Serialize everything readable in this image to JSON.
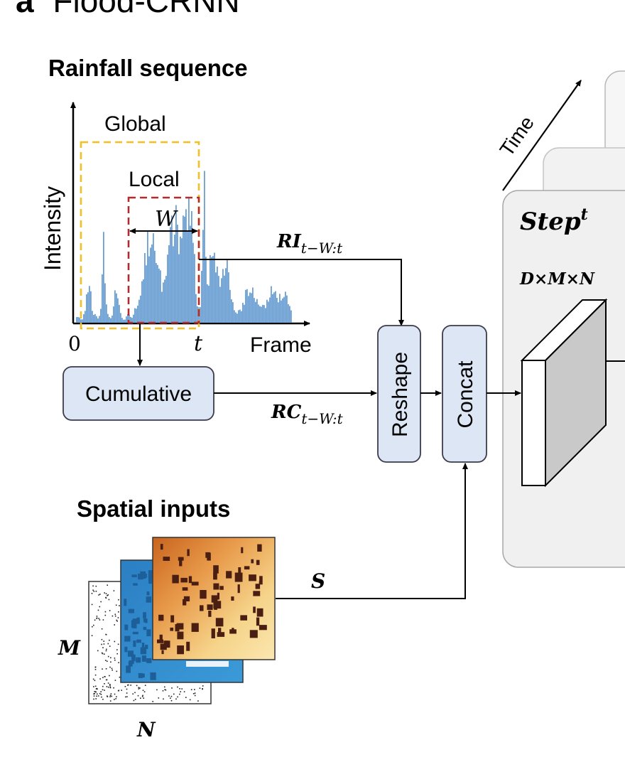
{
  "figure": {
    "panel_letter": "a",
    "panel_title": "Flood-CRNN"
  },
  "rainfall": {
    "heading": "Rainfall sequence",
    "y_axis_label": "Intensity",
    "x_axis_label": "Frame",
    "x_origin_label": "0",
    "x_t_label": "t",
    "global_label": "Global",
    "local_label": "Local",
    "window_label": "W",
    "bar_color": "#6a9fd4",
    "global_box_color": "#f2c024",
    "local_box_color": "#b52a2a"
  },
  "flow": {
    "ri_label": "RI",
    "ri_subscript": "t−W:t",
    "rc_label": "RC",
    "rc_subscript": "t−W:t",
    "s_label": "S",
    "cumulative_label": "Cumulative",
    "reshape_label": "Reshape",
    "concat_label": "Concat",
    "block_fill": "#dce6f4",
    "block_stroke": "#3b3b4a"
  },
  "step": {
    "time_label": "Time",
    "step_label": "Step",
    "step_superscript": "t",
    "dims_label": "D×M×N"
  },
  "spatial": {
    "heading": "Spatial inputs",
    "m_label": "M",
    "n_label": "N"
  }
}
